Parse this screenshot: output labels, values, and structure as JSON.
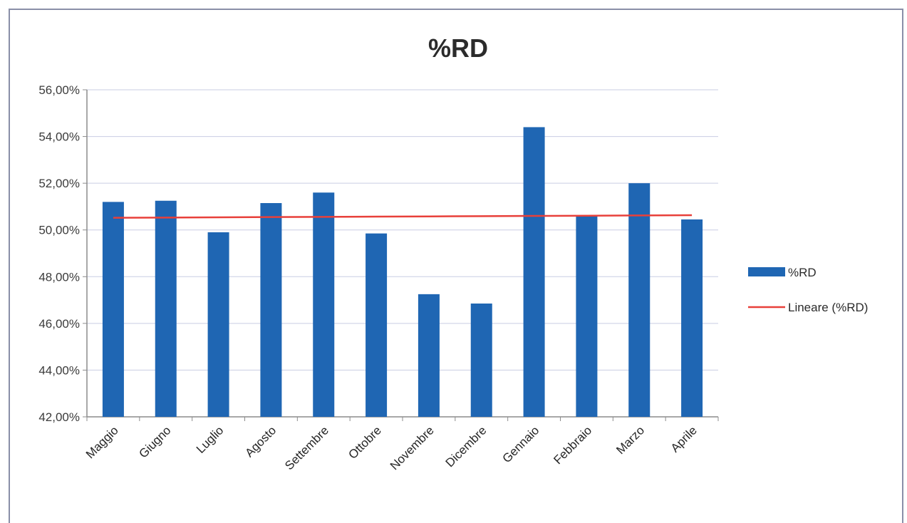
{
  "chart_data": {
    "type": "bar",
    "title": "%RD",
    "categories": [
      "Maggio",
      "Giugno",
      "Luglio",
      "Agosto",
      "Settembre",
      "Ottobre",
      "Novembre",
      "Dicembre",
      "Gennaio",
      "Febbraio",
      "Marzo",
      "Aprile"
    ],
    "series": [
      {
        "name": "%RD",
        "type": "bar",
        "color": "#1f66b3",
        "values": [
          51.2,
          51.25,
          49.9,
          51.15,
          51.6,
          49.85,
          47.25,
          46.85,
          54.4,
          50.6,
          52.0,
          50.45
        ]
      },
      {
        "name": "Lineare (%RD)",
        "type": "line",
        "color": "#e8403a",
        "values": [
          50.52,
          50.53,
          50.54,
          50.55,
          50.56,
          50.57,
          50.58,
          50.59,
          50.6,
          50.61,
          50.62,
          50.63
        ]
      }
    ],
    "ylim": [
      42,
      56
    ],
    "yticks": [
      "42,00%",
      "44,00%",
      "46,00%",
      "48,00%",
      "50,00%",
      "52,00%",
      "54,00%",
      "56,00%"
    ],
    "xlabel": "",
    "ylabel": "",
    "grid": true,
    "legend_position": "right"
  }
}
